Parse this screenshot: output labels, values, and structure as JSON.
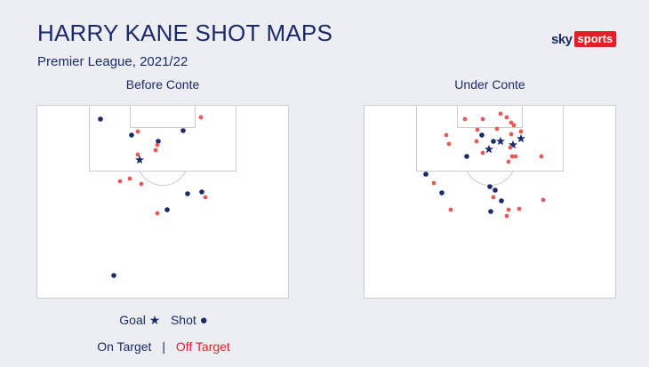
{
  "header": {
    "title": "HARRY KANE SHOT MAPS",
    "subtitle": "Premier League, 2021/22",
    "logo_sky": "sky",
    "logo_sports": "sports"
  },
  "legend": {
    "goal_label": "Goal",
    "goal_symbol": "★",
    "shot_label": "Shot",
    "shot_symbol": "●",
    "on_target": "On Target",
    "separator": "|",
    "off_target": "Off Target"
  },
  "colors": {
    "navy": "#1b2a6b",
    "red": "#e2202a",
    "on_target": "#1b2a6b",
    "off_target": "#e85a5a"
  },
  "chart_data": [
    {
      "type": "scatter",
      "title": "Before Conte",
      "xlim": [
        0,
        284
      ],
      "ylim": [
        0,
        218
      ],
      "points": [
        {
          "x": 72,
          "y": 16,
          "kind": "shot",
          "target": "on"
        },
        {
          "x": 185,
          "y": 14,
          "kind": "shot",
          "target": "off"
        },
        {
          "x": 107,
          "y": 34,
          "kind": "shot",
          "target": "on"
        },
        {
          "x": 114,
          "y": 30,
          "kind": "shot",
          "target": "off"
        },
        {
          "x": 165,
          "y": 29,
          "kind": "shot",
          "target": "on"
        },
        {
          "x": 137,
          "y": 41,
          "kind": "shot",
          "target": "on"
        },
        {
          "x": 136,
          "y": 45,
          "kind": "shot",
          "target": "off"
        },
        {
          "x": 134,
          "y": 51,
          "kind": "shot",
          "target": "off"
        },
        {
          "x": 114,
          "y": 56,
          "kind": "shot",
          "target": "off"
        },
        {
          "x": 116,
          "y": 62,
          "kind": "goal",
          "target": "on"
        },
        {
          "x": 105,
          "y": 83,
          "kind": "shot",
          "target": "off"
        },
        {
          "x": 94,
          "y": 86,
          "kind": "shot",
          "target": "off"
        },
        {
          "x": 118,
          "y": 89,
          "kind": "shot",
          "target": "off"
        },
        {
          "x": 170,
          "y": 100,
          "kind": "shot",
          "target": "on"
        },
        {
          "x": 186,
          "y": 98,
          "kind": "shot",
          "target": "on"
        },
        {
          "x": 190,
          "y": 104,
          "kind": "shot",
          "target": "off"
        },
        {
          "x": 147,
          "y": 118,
          "kind": "shot",
          "target": "on"
        },
        {
          "x": 136,
          "y": 122,
          "kind": "shot",
          "target": "off"
        },
        {
          "x": 87,
          "y": 192,
          "kind": "shot",
          "target": "on"
        }
      ]
    },
    {
      "type": "scatter",
      "title": "Under Conte",
      "xlim": [
        0,
        284
      ],
      "ylim": [
        0,
        218
      ],
      "points": [
        {
          "x": 114,
          "y": 16,
          "kind": "shot",
          "target": "off"
        },
        {
          "x": 134,
          "y": 16,
          "kind": "shot",
          "target": "off"
        },
        {
          "x": 154,
          "y": 10,
          "kind": "shot",
          "target": "off"
        },
        {
          "x": 161,
          "y": 14,
          "kind": "shot",
          "target": "off"
        },
        {
          "x": 166,
          "y": 20,
          "kind": "shot",
          "target": "off"
        },
        {
          "x": 169,
          "y": 23,
          "kind": "shot",
          "target": "off"
        },
        {
          "x": 93,
          "y": 34,
          "kind": "shot",
          "target": "off"
        },
        {
          "x": 128,
          "y": 28,
          "kind": "shot",
          "target": "off"
        },
        {
          "x": 133,
          "y": 34,
          "kind": "shot",
          "target": "on"
        },
        {
          "x": 150,
          "y": 27,
          "kind": "shot",
          "target": "off"
        },
        {
          "x": 166,
          "y": 33,
          "kind": "shot",
          "target": "off"
        },
        {
          "x": 177,
          "y": 30,
          "kind": "shot",
          "target": "off"
        },
        {
          "x": 96,
          "y": 44,
          "kind": "shot",
          "target": "off"
        },
        {
          "x": 127,
          "y": 41,
          "kind": "shot",
          "target": "off"
        },
        {
          "x": 146,
          "y": 41,
          "kind": "shot",
          "target": "on"
        },
        {
          "x": 154,
          "y": 41,
          "kind": "goal",
          "target": "on"
        },
        {
          "x": 168,
          "y": 45,
          "kind": "goal",
          "target": "on"
        },
        {
          "x": 177,
          "y": 38,
          "kind": "goal",
          "target": "on"
        },
        {
          "x": 141,
          "y": 50,
          "kind": "goal",
          "target": "on"
        },
        {
          "x": 165,
          "y": 48,
          "kind": "shot",
          "target": "off"
        },
        {
          "x": 134,
          "y": 54,
          "kind": "shot",
          "target": "off"
        },
        {
          "x": 116,
          "y": 58,
          "kind": "shot",
          "target": "on"
        },
        {
          "x": 167,
          "y": 58,
          "kind": "shot",
          "target": "off"
        },
        {
          "x": 171,
          "y": 58,
          "kind": "shot",
          "target": "off"
        },
        {
          "x": 163,
          "y": 64,
          "kind": "shot",
          "target": "off"
        },
        {
          "x": 200,
          "y": 58,
          "kind": "shot",
          "target": "off"
        },
        {
          "x": 70,
          "y": 78,
          "kind": "shot",
          "target": "on"
        },
        {
          "x": 79,
          "y": 88,
          "kind": "shot",
          "target": "off"
        },
        {
          "x": 142,
          "y": 92,
          "kind": "shot",
          "target": "on"
        },
        {
          "x": 148,
          "y": 96,
          "kind": "shot",
          "target": "on"
        },
        {
          "x": 88,
          "y": 99,
          "kind": "shot",
          "target": "on"
        },
        {
          "x": 146,
          "y": 104,
          "kind": "shot",
          "target": "off"
        },
        {
          "x": 155,
          "y": 108,
          "kind": "shot",
          "target": "on"
        },
        {
          "x": 202,
          "y": 107,
          "kind": "shot",
          "target": "off"
        },
        {
          "x": 98,
          "y": 118,
          "kind": "shot",
          "target": "off"
        },
        {
          "x": 143,
          "y": 120,
          "kind": "shot",
          "target": "on"
        },
        {
          "x": 163,
          "y": 118,
          "kind": "shot",
          "target": "off"
        },
        {
          "x": 175,
          "y": 117,
          "kind": "shot",
          "target": "off"
        },
        {
          "x": 161,
          "y": 125,
          "kind": "shot",
          "target": "off"
        }
      ]
    }
  ]
}
